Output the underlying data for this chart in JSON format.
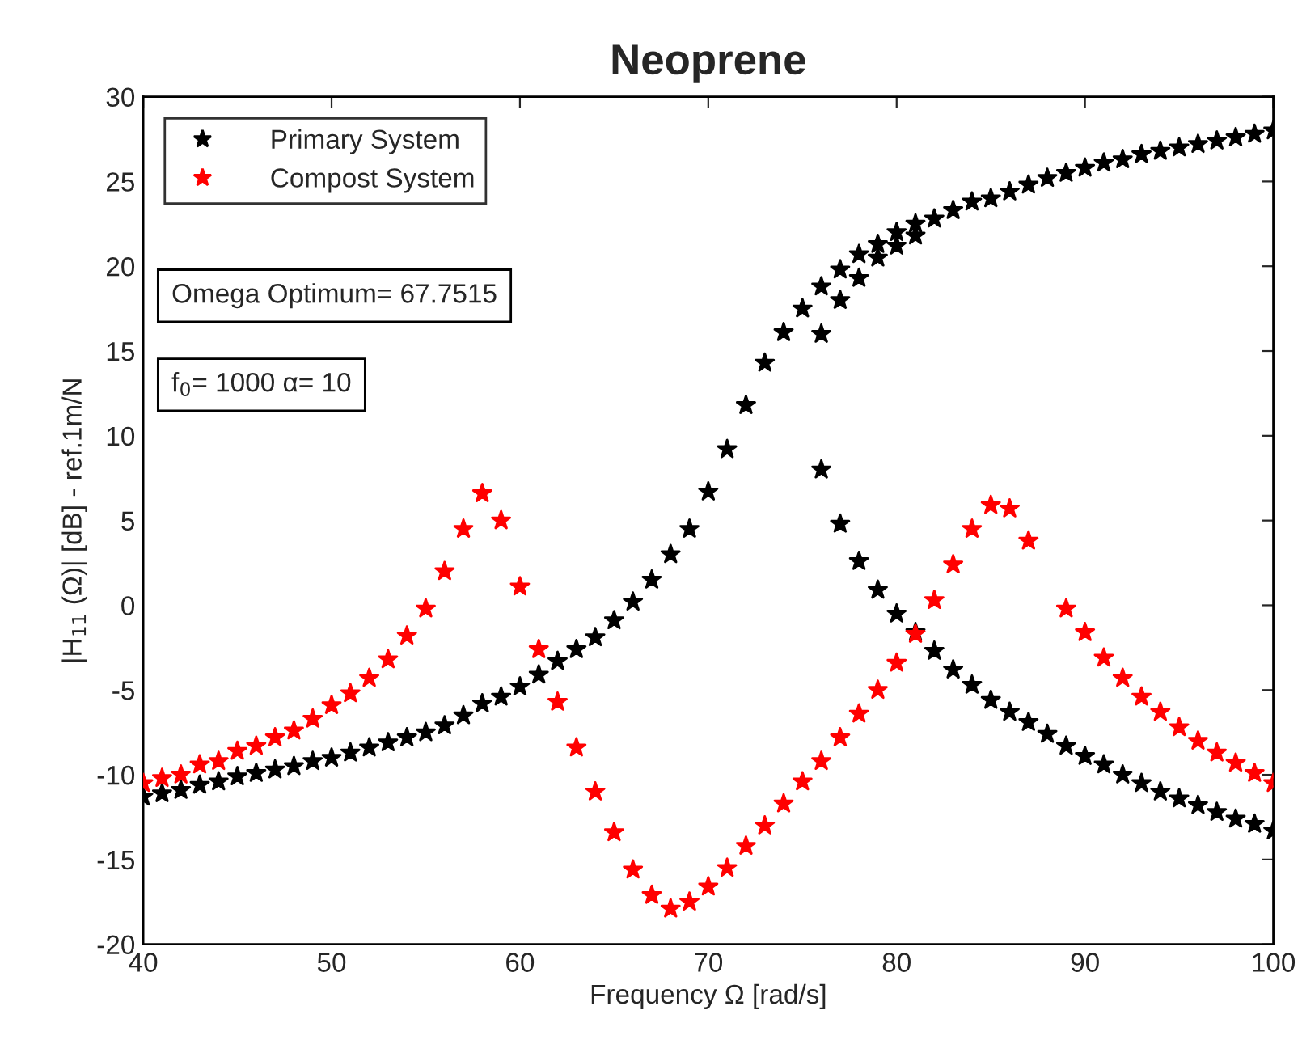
{
  "chart_data": {
    "type": "scatter",
    "title": "Neoprene",
    "xlabel": "Frequency Ω [rad/s]",
    "ylabel": "|H$_{11}$ (Ω)| [dB] - ref.1m/N",
    "annotations": [
      "Omega Optimum= 67.7515",
      "f$_{0}$= 1000 α= 10"
    ],
    "xlim": [
      40,
      100
    ],
    "xticks": [
      40,
      50,
      60,
      70,
      80,
      90,
      100
    ],
    "ylim": [
      -20,
      30
    ],
    "yticks": [
      -20,
      -15,
      -10,
      -5,
      0,
      5,
      10,
      15,
      20,
      25,
      30
    ],
    "grid": false,
    "legend": "top left",
    "marker": "star",
    "series": [
      {
        "name": "Primary System",
        "color": "#000000",
        "x": [
          40,
          41,
          42,
          43,
          44,
          45,
          46,
          47,
          48,
          49,
          50,
          51,
          52,
          53,
          54,
          55,
          56,
          57,
          58,
          59,
          60,
          61,
          62,
          63,
          64,
          65,
          66,
          67,
          68,
          69,
          70,
          71,
          72,
          73,
          74,
          75,
          76,
          77,
          78,
          79,
          80,
          81,
          82,
          83,
          84,
          85,
          86,
          87,
          88,
          89,
          90,
          91,
          92,
          93,
          94,
          95,
          96,
          97,
          98,
          99,
          100,
          76,
          77,
          78,
          79,
          80,
          81,
          76,
          77,
          78,
          79,
          80,
          81,
          82,
          83,
          84,
          85,
          86,
          87,
          88,
          89,
          90,
          91,
          92,
          93,
          94,
          95,
          96,
          97,
          98,
          99,
          100
        ],
        "values": [
          -11.3,
          -11.1,
          -10.9,
          -10.6,
          -10.4,
          -10.1,
          -9.9,
          -9.7,
          -9.5,
          -9.2,
          -9.0,
          -8.7,
          -8.4,
          -8.1,
          -7.8,
          -7.5,
          -7.1,
          -6.5,
          -5.8,
          -5.4,
          -4.8,
          -4.1,
          -3.3,
          -2.6,
          -1.9,
          -0.9,
          0.2,
          1.5,
          3.0,
          4.5,
          6.7,
          9.2,
          11.8,
          14.3,
          16.1,
          17.5,
          18.8,
          19.8,
          20.7,
          21.3,
          22.0,
          22.5,
          22.8,
          23.3,
          23.8,
          24.0,
          24.4,
          24.8,
          25.2,
          25.5,
          25.8,
          26.1,
          26.3,
          26.6,
          26.8,
          27.0,
          27.2,
          27.4,
          27.6,
          27.8,
          28.0,
          16.0,
          18.0,
          19.3,
          20.5,
          21.2,
          21.8,
          8.0,
          4.8,
          2.6,
          0.9,
          -0.5,
          -1.6,
          -2.7,
          -3.8,
          -4.7,
          -5.6,
          -6.3,
          -6.9,
          -7.6,
          -8.3,
          -8.9,
          -9.4,
          -10.0,
          -10.5,
          -11.0,
          -11.4,
          -11.8,
          -12.2,
          -12.6,
          -12.9,
          -13.3
        ]
      },
      {
        "name": "Compost System",
        "color": "#ff0000",
        "x": [
          40,
          41,
          42,
          43,
          44,
          45,
          46,
          47,
          48,
          49,
          50,
          51,
          52,
          53,
          54,
          55,
          56,
          57,
          58,
          59,
          60,
          61,
          62,
          63,
          64,
          65,
          66,
          67,
          68,
          69,
          70,
          71,
          72,
          73,
          74,
          75,
          76,
          77,
          78,
          79,
          80,
          81,
          82,
          83,
          84,
          85,
          86,
          87,
          89,
          90,
          91,
          92,
          93,
          94,
          95,
          96,
          97,
          98,
          99,
          100
        ],
        "values": [
          -10.5,
          -10.2,
          -10.0,
          -9.4,
          -9.2,
          -8.6,
          -8.3,
          -7.8,
          -7.4,
          -6.7,
          -5.9,
          -5.2,
          -4.3,
          -3.2,
          -1.8,
          -0.2,
          2.0,
          4.5,
          6.6,
          5.0,
          1.1,
          -2.6,
          -5.7,
          -8.4,
          -11.0,
          -13.4,
          -15.6,
          -17.1,
          -17.9,
          -17.5,
          -16.6,
          -15.5,
          -14.2,
          -13.0,
          -11.7,
          -10.4,
          -9.2,
          -7.8,
          -6.4,
          -5.0,
          -3.4,
          -1.7,
          0.3,
          2.4,
          4.5,
          5.9,
          5.7,
          3.8,
          -0.2,
          -1.6,
          -3.1,
          -4.3,
          -5.4,
          -6.3,
          -7.2,
          -8.0,
          -8.7,
          -9.3,
          -9.9,
          -10.5
        ]
      }
    ]
  }
}
